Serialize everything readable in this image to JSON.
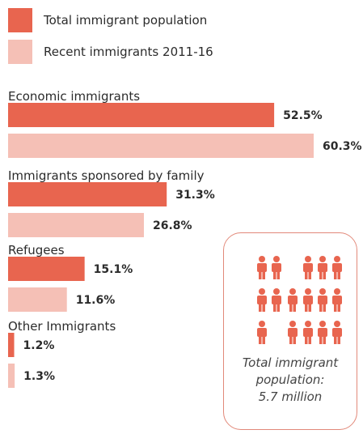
{
  "legend": [
    {
      "label": "Total immigrant population",
      "color": "#e8654f"
    },
    {
      "label": "Recent immigrants 2011-16",
      "color": "#f5c0b6"
    }
  ],
  "chart_data": {
    "type": "bar",
    "orientation": "horizontal",
    "categories": [
      "Economic immigrants",
      "Immigrants sponsored by family",
      "Refugees",
      "Other Immigrants"
    ],
    "series": [
      {
        "name": "Total immigrant population",
        "values": [
          52.5,
          31.3,
          15.1,
          1.2
        ],
        "labels": [
          "52.5%",
          "31.3%",
          "15.1%",
          "1.2%"
        ],
        "color": "#e8654f"
      },
      {
        "name": "Recent immigrants 2011-16",
        "values": [
          60.3,
          26.8,
          11.6,
          1.3
        ],
        "labels": [
          "60.3%",
          "26.8%",
          "11.6%",
          "1.3%"
        ],
        "color": "#f5c0b6"
      }
    ],
    "unit": "%"
  },
  "callout": {
    "line1": "Total immigrant",
    "line2": "population:",
    "line3": "5.7 million",
    "person_icon": "person-icon",
    "icon_color": "#e8654f"
  }
}
